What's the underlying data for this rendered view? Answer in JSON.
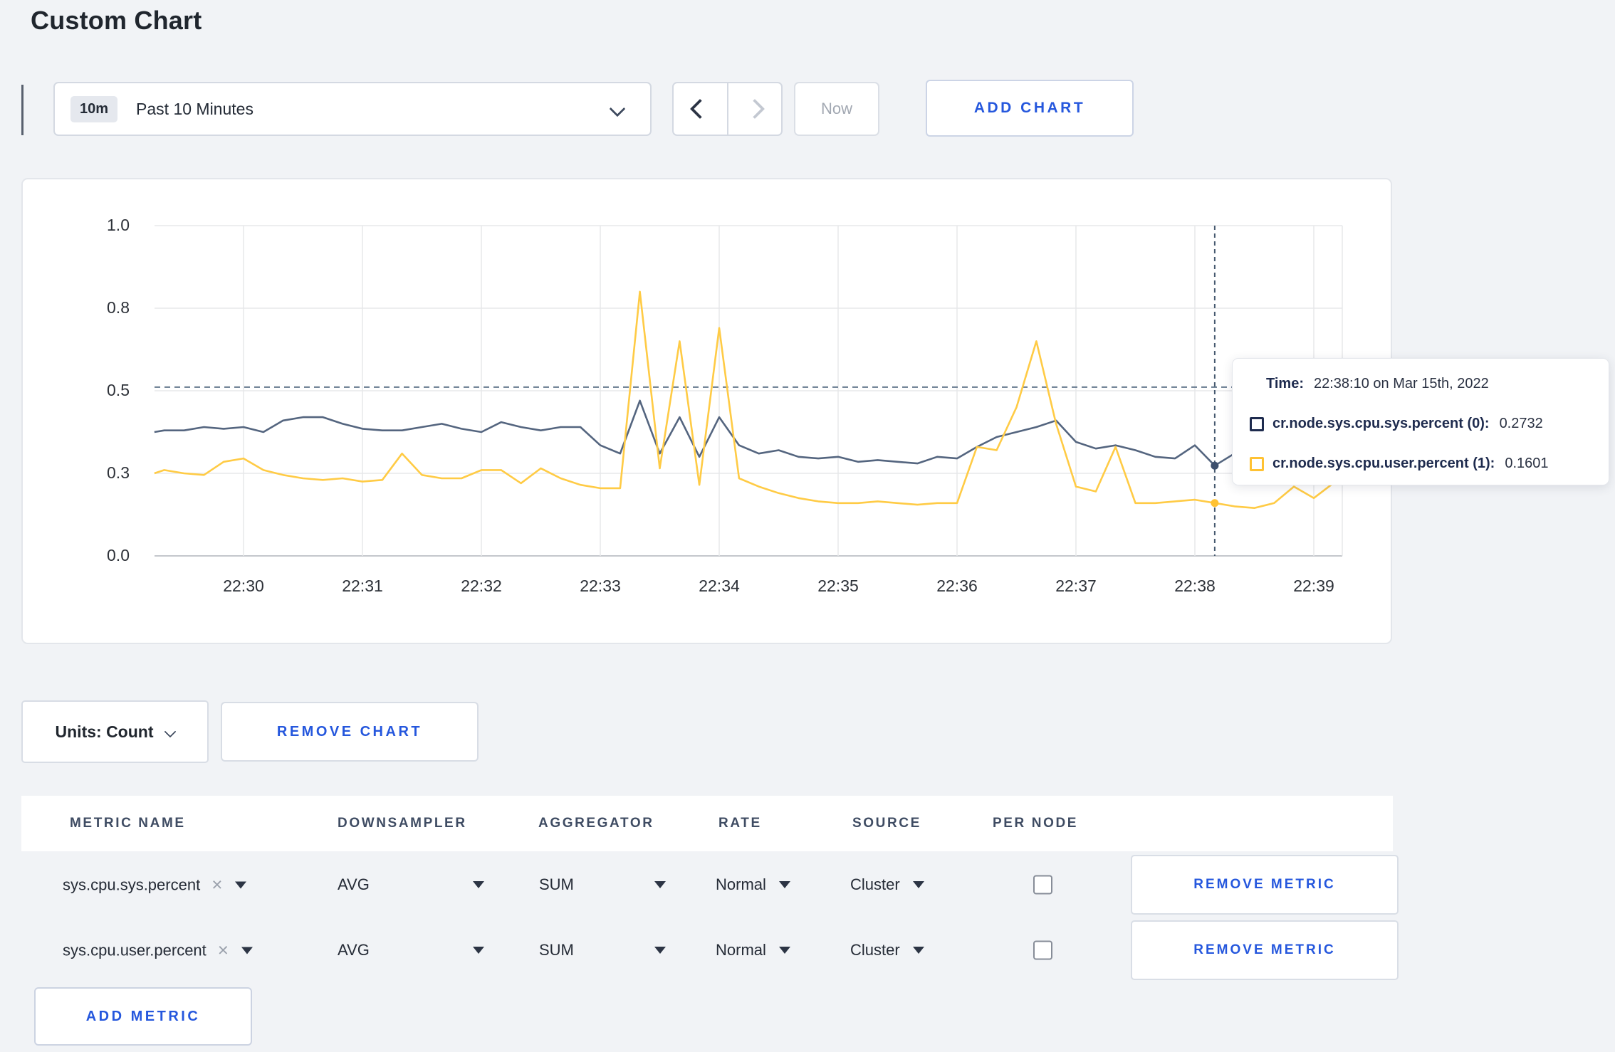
{
  "page": {
    "title": "Custom Chart"
  },
  "colors": {
    "accent_blue": "#2557dd",
    "series_sys": "#54657f",
    "series_user": "#ffcb45",
    "tooltip_navy": "#1e2b4e",
    "grid": "#e7e8ea",
    "axis": "#c4c7cc",
    "dashed_guide": "#64788d"
  },
  "toolbar": {
    "time_badge": "10m",
    "time_label": "Past 10 Minutes",
    "now_label": "Now",
    "add_chart_label": "ADD CHART",
    "icons": {
      "time_dropdown": "chevron-down",
      "prev": "chevron-left",
      "next": "chevron-right"
    }
  },
  "chart_controls": {
    "units_label": "Units: Count",
    "remove_chart_label": "REMOVE CHART"
  },
  "tooltip": {
    "time_label": "Time:",
    "time_value": "22:38:10 on Mar 15th, 2022",
    "series1_label": "cr.node.sys.cpu.sys.percent (0):",
    "series1_value": "0.2732",
    "series2_label": "cr.node.sys.cpu.user.percent (1):",
    "series2_value": "0.1601"
  },
  "chart_data": {
    "type": "line",
    "title": "",
    "xlabel": "",
    "ylabel": "",
    "ylim": [
      0,
      1
    ],
    "grid": true,
    "x_tick_labels": [
      "22:30",
      "22:31",
      "22:32",
      "22:33",
      "22:34",
      "22:35",
      "22:36",
      "22:37",
      "22:38",
      "22:39"
    ],
    "y_ticks": [
      {
        "label": "0.0",
        "value": 0
      },
      {
        "label": "0.3",
        "value": 0.25
      },
      {
        "label": "0.5",
        "value": 0.5
      },
      {
        "label": "0.8",
        "value": 0.75
      },
      {
        "label": "1.0",
        "value": 1
      }
    ],
    "guideline_value": 0.511,
    "crosshair": {
      "t_minutes_after_2230": 8.167,
      "time": "22:38:10",
      "points": [
        {
          "series": "cr.node.sys.cpu.sys.percent",
          "value": 0.2732,
          "color": "#3d4f6d"
        },
        {
          "series": "cr.node.sys.cpu.user.percent",
          "value": 0.1601,
          "color": "#ffc233"
        }
      ]
    },
    "series": [
      {
        "name": "cr.node.sys.cpu.sys.percent",
        "color": "#54657f",
        "points": [
          [
            -0.75,
            0.375
          ],
          [
            -0.667,
            0.38
          ],
          [
            -0.5,
            0.38
          ],
          [
            -0.333,
            0.39
          ],
          [
            -0.167,
            0.385
          ],
          [
            0,
            0.39
          ],
          [
            0.167,
            0.375
          ],
          [
            0.333,
            0.41
          ],
          [
            0.5,
            0.42
          ],
          [
            0.667,
            0.42
          ],
          [
            0.833,
            0.4
          ],
          [
            1,
            0.385
          ],
          [
            1.167,
            0.38
          ],
          [
            1.333,
            0.38
          ],
          [
            1.5,
            0.39
          ],
          [
            1.667,
            0.4
          ],
          [
            1.833,
            0.385
          ],
          [
            2,
            0.375
          ],
          [
            2.167,
            0.405
          ],
          [
            2.333,
            0.39
          ],
          [
            2.5,
            0.38
          ],
          [
            2.667,
            0.39
          ],
          [
            2.833,
            0.39
          ],
          [
            3,
            0.335
          ],
          [
            3.167,
            0.31
          ],
          [
            3.333,
            0.47
          ],
          [
            3.5,
            0.31
          ],
          [
            3.667,
            0.42
          ],
          [
            3.833,
            0.3
          ],
          [
            4,
            0.42
          ],
          [
            4.167,
            0.335
          ],
          [
            4.333,
            0.31
          ],
          [
            4.5,
            0.32
          ],
          [
            4.667,
            0.3
          ],
          [
            4.833,
            0.295
          ],
          [
            5,
            0.3
          ],
          [
            5.167,
            0.285
          ],
          [
            5.333,
            0.29
          ],
          [
            5.5,
            0.285
          ],
          [
            5.667,
            0.28
          ],
          [
            5.833,
            0.3
          ],
          [
            6,
            0.295
          ],
          [
            6.167,
            0.33
          ],
          [
            6.333,
            0.36
          ],
          [
            6.5,
            0.375
          ],
          [
            6.667,
            0.39
          ],
          [
            6.833,
            0.41
          ],
          [
            7,
            0.345
          ],
          [
            7.167,
            0.325
          ],
          [
            7.333,
            0.335
          ],
          [
            7.5,
            0.32
          ],
          [
            7.667,
            0.3
          ],
          [
            7.833,
            0.295
          ],
          [
            8,
            0.335
          ],
          [
            8.167,
            0.2732
          ],
          [
            8.333,
            0.31
          ],
          [
            8.5,
            0.295
          ],
          [
            8.667,
            0.3
          ],
          [
            8.833,
            0.295
          ],
          [
            9,
            0.3
          ],
          [
            9.2,
            0.3
          ]
        ]
      },
      {
        "name": "cr.node.sys.cpu.user.percent",
        "color": "#ffcb45",
        "points": [
          [
            -0.75,
            0.25
          ],
          [
            -0.667,
            0.26
          ],
          [
            -0.5,
            0.25
          ],
          [
            -0.333,
            0.245
          ],
          [
            -0.167,
            0.285
          ],
          [
            0,
            0.295
          ],
          [
            0.167,
            0.26
          ],
          [
            0.333,
            0.245
          ],
          [
            0.5,
            0.235
          ],
          [
            0.667,
            0.23
          ],
          [
            0.833,
            0.235
          ],
          [
            1,
            0.225
          ],
          [
            1.167,
            0.23
          ],
          [
            1.333,
            0.31
          ],
          [
            1.5,
            0.245
          ],
          [
            1.667,
            0.235
          ],
          [
            1.833,
            0.235
          ],
          [
            2,
            0.26
          ],
          [
            2.167,
            0.26
          ],
          [
            2.333,
            0.22
          ],
          [
            2.5,
            0.265
          ],
          [
            2.667,
            0.235
          ],
          [
            2.833,
            0.215
          ],
          [
            3,
            0.205
          ],
          [
            3.167,
            0.205
          ],
          [
            3.333,
            0.8
          ],
          [
            3.5,
            0.265
          ],
          [
            3.667,
            0.65
          ],
          [
            3.833,
            0.215
          ],
          [
            4,
            0.69
          ],
          [
            4.167,
            0.235
          ],
          [
            4.333,
            0.21
          ],
          [
            4.5,
            0.19
          ],
          [
            4.667,
            0.175
          ],
          [
            4.833,
            0.165
          ],
          [
            5,
            0.16
          ],
          [
            5.167,
            0.16
          ],
          [
            5.333,
            0.165
          ],
          [
            5.5,
            0.16
          ],
          [
            5.667,
            0.155
          ],
          [
            5.833,
            0.16
          ],
          [
            6,
            0.16
          ],
          [
            6.167,
            0.33
          ],
          [
            6.333,
            0.32
          ],
          [
            6.5,
            0.45
          ],
          [
            6.667,
            0.65
          ],
          [
            6.833,
            0.4
          ],
          [
            7,
            0.21
          ],
          [
            7.167,
            0.195
          ],
          [
            7.333,
            0.33
          ],
          [
            7.5,
            0.16
          ],
          [
            7.667,
            0.16
          ],
          [
            7.833,
            0.165
          ],
          [
            8,
            0.17
          ],
          [
            8.167,
            0.1601
          ],
          [
            8.333,
            0.15
          ],
          [
            8.5,
            0.145
          ],
          [
            8.667,
            0.16
          ],
          [
            8.833,
            0.21
          ],
          [
            9,
            0.175
          ],
          [
            9.2,
            0.23
          ]
        ]
      }
    ]
  },
  "metrics_table": {
    "headers": [
      "METRIC NAME",
      "DOWNSAMPLER",
      "AGGREGATOR",
      "RATE",
      "SOURCE",
      "PER NODE"
    ],
    "rows": [
      {
        "name": "sys.cpu.sys.percent",
        "downsampler": "AVG",
        "aggregator": "SUM",
        "rate": "Normal",
        "source": "Cluster",
        "per_node_checked": false,
        "remove_label": "REMOVE METRIC"
      },
      {
        "name": "sys.cpu.user.percent",
        "downsampler": "AVG",
        "aggregator": "SUM",
        "rate": "Normal",
        "source": "Cluster",
        "per_node_checked": false,
        "remove_label": "REMOVE METRIC"
      }
    ],
    "add_metric_label": "ADD METRIC",
    "remove_icon": "×"
  }
}
